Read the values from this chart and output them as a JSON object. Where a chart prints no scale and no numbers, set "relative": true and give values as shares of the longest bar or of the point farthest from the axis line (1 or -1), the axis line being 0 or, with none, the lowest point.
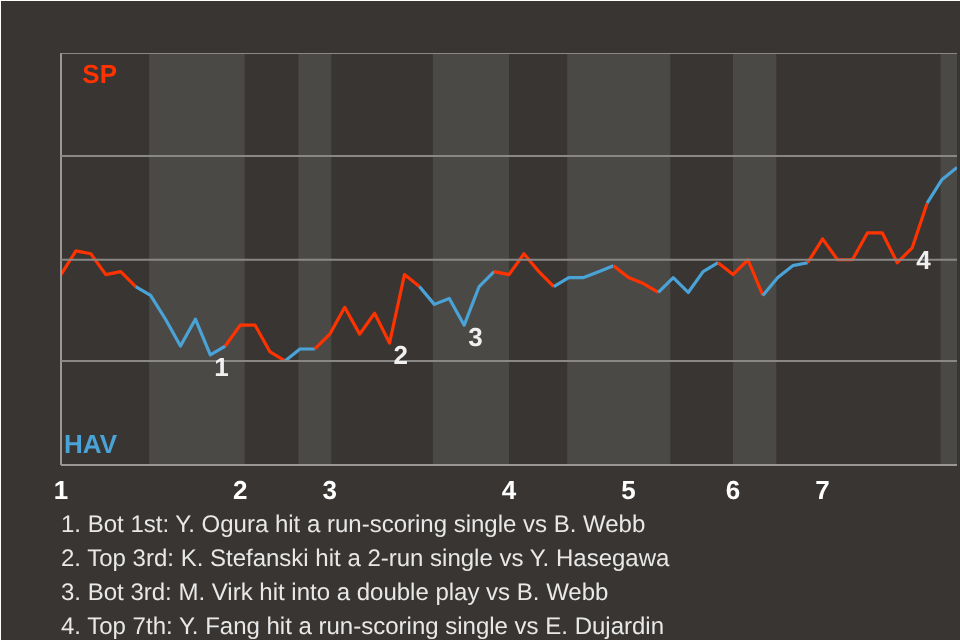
{
  "chart_data": {
    "type": "line",
    "relative": true,
    "categories": [
      "1",
      null,
      null,
      null,
      null,
      null,
      null,
      null,
      null,
      null,
      null,
      null,
      "2",
      null,
      null,
      null,
      null,
      null,
      "3",
      null,
      null,
      null,
      null,
      null,
      null,
      null,
      null,
      null,
      null,
      null,
      "4",
      null,
      null,
      null,
      null,
      null,
      null,
      null,
      "5",
      null,
      null,
      null,
      null,
      null,
      null,
      "6",
      null,
      null,
      null,
      null,
      null,
      "7",
      null,
      null,
      null,
      null,
      null,
      null,
      null,
      null,
      null
    ],
    "series": [
      {
        "name": "SP",
        "color": "#ff3300",
        "values": [
          0.64,
          0.72,
          0.71,
          0.64,
          0.65,
          0.6,
          null,
          null,
          null,
          null,
          null,
          null,
          null,
          null,
          null,
          null,
          null,
          null,
          null,
          null,
          null,
          null,
          null,
          null,
          null,
          null,
          null,
          null,
          null,
          null,
          null,
          null,
          null,
          null,
          null,
          null,
          null,
          null,
          null,
          null,
          null,
          null,
          null,
          null,
          null,
          null,
          null,
          null,
          null,
          null,
          null,
          null,
          null,
          null,
          null,
          null,
          null,
          null,
          null,
          null,
          null
        ]
      },
      {
        "name": "HAV",
        "color": "#4aa3d6",
        "values": [
          null,
          null,
          null,
          null,
          null,
          0.6,
          0.57,
          0.49,
          0.4,
          0.49,
          0.37,
          0.4,
          null,
          null,
          null,
          null,
          null,
          null,
          null,
          null,
          null,
          null,
          null,
          null,
          null,
          null,
          null,
          null,
          null,
          null,
          null,
          null,
          null,
          null,
          null,
          null,
          null,
          null,
          null,
          null,
          null,
          null,
          null,
          null,
          null,
          null,
          null,
          null,
          null,
          null,
          null,
          null,
          null,
          null,
          null,
          null,
          null,
          null,
          null,
          null,
          null
        ]
      },
      {
        "color": "#ff3300",
        "values": [
          null,
          null,
          null,
          null,
          null,
          null,
          null,
          null,
          null,
          null,
          null,
          0.4,
          0.47,
          0.47,
          0.38,
          0.35,
          null,
          null,
          null,
          null,
          null,
          null,
          null,
          null,
          null,
          null,
          null,
          null,
          null,
          null,
          null,
          null,
          null,
          null,
          null,
          null,
          null,
          null,
          null,
          null,
          null,
          null,
          null,
          null,
          null,
          null,
          null,
          null,
          null,
          null,
          null,
          null,
          null,
          null,
          null,
          null,
          null,
          null,
          null,
          null,
          null
        ]
      },
      {
        "color": "#4aa3d6",
        "values": [
          null,
          null,
          null,
          null,
          null,
          null,
          null,
          null,
          null,
          null,
          null,
          null,
          null,
          null,
          null,
          0.35,
          0.39,
          0.39,
          null,
          null,
          null,
          null,
          null,
          null,
          null,
          null,
          null,
          null,
          null,
          null,
          null,
          null,
          null,
          null,
          null,
          null,
          null,
          null,
          null,
          null,
          null,
          null,
          null,
          null,
          null,
          null,
          null,
          null,
          null,
          null,
          null,
          null,
          null,
          null,
          null,
          null,
          null,
          null,
          null,
          null,
          null
        ]
      },
      {
        "color": "#ff3300",
        "values": [
          null,
          null,
          null,
          null,
          null,
          null,
          null,
          null,
          null,
          null,
          null,
          null,
          null,
          null,
          null,
          null,
          null,
          0.39,
          0.44,
          0.53,
          0.44,
          0.51,
          0.41,
          0.64,
          0.6,
          null,
          null,
          null,
          null,
          null,
          null,
          null,
          null,
          null,
          null,
          null,
          null,
          null,
          null,
          null,
          null,
          null,
          null,
          null,
          null,
          null,
          null,
          null,
          null,
          null,
          null,
          null,
          null,
          null,
          null,
          null,
          null,
          null,
          null,
          null,
          null
        ]
      },
      {
        "color": "#4aa3d6",
        "values": [
          null,
          null,
          null,
          null,
          null,
          null,
          null,
          null,
          null,
          null,
          null,
          null,
          null,
          null,
          null,
          null,
          null,
          null,
          null,
          null,
          null,
          null,
          null,
          null,
          0.6,
          0.54,
          0.56,
          0.47,
          0.6,
          0.65,
          null,
          null,
          null,
          null,
          null,
          null,
          null,
          null,
          null,
          null,
          null,
          null,
          null,
          null,
          null,
          null,
          null,
          null,
          null,
          null,
          null,
          null,
          null,
          null,
          null,
          null,
          null,
          null,
          null,
          null,
          null
        ]
      },
      {
        "color": "#ff3300",
        "values": [
          null,
          null,
          null,
          null,
          null,
          null,
          null,
          null,
          null,
          null,
          null,
          null,
          null,
          null,
          null,
          null,
          null,
          null,
          null,
          null,
          null,
          null,
          null,
          null,
          null,
          null,
          null,
          null,
          null,
          0.65,
          0.64,
          0.71,
          0.65,
          0.6,
          null,
          null,
          null,
          null,
          null,
          null,
          null,
          null,
          null,
          null,
          null,
          null,
          null,
          null,
          null,
          null,
          null,
          null,
          null,
          null,
          null,
          null,
          null,
          null,
          null,
          null,
          null
        ]
      },
      {
        "color": "#4aa3d6",
        "values": [
          null,
          null,
          null,
          null,
          null,
          null,
          null,
          null,
          null,
          null,
          null,
          null,
          null,
          null,
          null,
          null,
          null,
          null,
          null,
          null,
          null,
          null,
          null,
          null,
          null,
          null,
          null,
          null,
          null,
          null,
          null,
          null,
          null,
          0.6,
          0.63,
          0.63,
          0.65,
          0.67,
          null,
          null,
          null,
          null,
          null,
          null,
          null,
          null,
          null,
          null,
          null,
          null,
          null,
          null,
          null,
          null,
          null,
          null,
          null,
          null,
          null,
          null,
          null
        ]
      },
      {
        "color": "#ff3300",
        "values": [
          null,
          null,
          null,
          null,
          null,
          null,
          null,
          null,
          null,
          null,
          null,
          null,
          null,
          null,
          null,
          null,
          null,
          null,
          null,
          null,
          null,
          null,
          null,
          null,
          null,
          null,
          null,
          null,
          null,
          null,
          null,
          null,
          null,
          null,
          null,
          null,
          null,
          0.67,
          0.63,
          0.61,
          0.58,
          null,
          null,
          null,
          null,
          null,
          null,
          null,
          null,
          null,
          null,
          null,
          null,
          null,
          null,
          null,
          null,
          null,
          null,
          null,
          null
        ]
      },
      {
        "color": "#4aa3d6",
        "values": [
          null,
          null,
          null,
          null,
          null,
          null,
          null,
          null,
          null,
          null,
          null,
          null,
          null,
          null,
          null,
          null,
          null,
          null,
          null,
          null,
          null,
          null,
          null,
          null,
          null,
          null,
          null,
          null,
          null,
          null,
          null,
          null,
          null,
          null,
          null,
          null,
          null,
          null,
          null,
          null,
          0.58,
          0.63,
          0.58,
          0.65,
          0.68,
          null,
          null,
          null,
          null,
          null,
          null,
          null,
          null,
          null,
          null,
          null,
          null,
          null,
          null,
          null,
          null
        ]
      },
      {
        "color": "#ff3300",
        "values": [
          null,
          null,
          null,
          null,
          null,
          null,
          null,
          null,
          null,
          null,
          null,
          null,
          null,
          null,
          null,
          null,
          null,
          null,
          null,
          null,
          null,
          null,
          null,
          null,
          null,
          null,
          null,
          null,
          null,
          null,
          null,
          null,
          null,
          null,
          null,
          null,
          null,
          null,
          null,
          null,
          null,
          null,
          null,
          null,
          0.68,
          0.64,
          0.69,
          0.57,
          null,
          null,
          null,
          null,
          null,
          null,
          null,
          null,
          null,
          null,
          null,
          null,
          null
        ]
      },
      {
        "color": "#4aa3d6",
        "values": [
          null,
          null,
          null,
          null,
          null,
          null,
          null,
          null,
          null,
          null,
          null,
          null,
          null,
          null,
          null,
          null,
          null,
          null,
          null,
          null,
          null,
          null,
          null,
          null,
          null,
          null,
          null,
          null,
          null,
          null,
          null,
          null,
          null,
          null,
          null,
          null,
          null,
          null,
          null,
          null,
          null,
          null,
          null,
          null,
          null,
          null,
          null,
          0.57,
          0.63,
          0.67,
          0.68,
          null,
          null,
          null,
          null,
          null,
          null,
          null,
          null,
          null,
          null
        ]
      },
      {
        "color": "#ff3300",
        "values": [
          null,
          null,
          null,
          null,
          null,
          null,
          null,
          null,
          null,
          null,
          null,
          null,
          null,
          null,
          null,
          null,
          null,
          null,
          null,
          null,
          null,
          null,
          null,
          null,
          null,
          null,
          null,
          null,
          null,
          null,
          null,
          null,
          null,
          null,
          null,
          null,
          null,
          null,
          null,
          null,
          null,
          null,
          null,
          null,
          null,
          null,
          null,
          null,
          null,
          null,
          0.68,
          0.76,
          0.69,
          0.69,
          0.78,
          0.78,
          0.68,
          0.73,
          0.88,
          null,
          null
        ]
      },
      {
        "color": "#4aa3d6",
        "values": [
          null,
          null,
          null,
          null,
          null,
          null,
          null,
          null,
          null,
          null,
          null,
          null,
          null,
          null,
          null,
          null,
          null,
          null,
          null,
          null,
          null,
          null,
          null,
          null,
          null,
          null,
          null,
          null,
          null,
          null,
          null,
          null,
          null,
          null,
          null,
          null,
          null,
          null,
          null,
          null,
          null,
          null,
          null,
          null,
          null,
          null,
          null,
          null,
          null,
          null,
          null,
          null,
          null,
          null,
          null,
          null,
          null,
          null,
          0.88,
          0.96,
          1.0
        ]
      }
    ],
    "ref_lines": [
      {
        "axis": "y",
        "value": 0.35,
        "color": "#8a8886"
      },
      {
        "axis": "y",
        "value": 0.69,
        "color": "#8a8886"
      }
    ],
    "annotations": [
      {
        "text": "1",
        "y": 0.37
      },
      {
        "text": "2",
        "y": 0.41
      },
      {
        "text": "3",
        "y": 0.47
      },
      {
        "text": "4",
        "y": 0.73
      },
      "1. Bot 1st: Y. Ogura hit a run-scoring single vs B. Webb",
      "2. Top 3rd: K. Stefanski hit a 2-run single vs Y. Hasegawa",
      "3. Bot 3rd: M. Virk hit into a double play vs B. Webb",
      "4. Top 7th: Y. Fang hit a run-scoring single vs E. Dujardin"
    ]
  }
}
